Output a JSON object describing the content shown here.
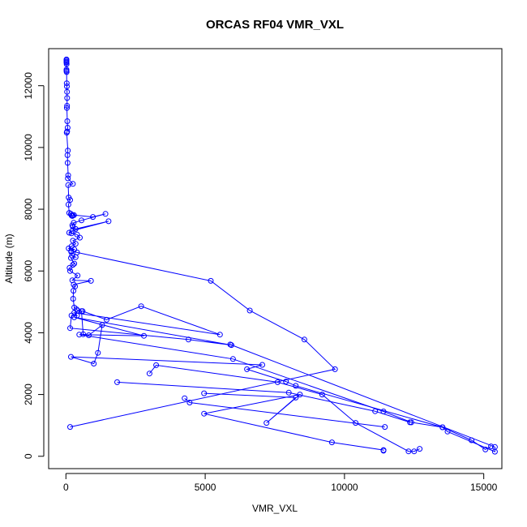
{
  "chart_data": {
    "type": "line",
    "title": "ORCAS RF04 VMR_VXL",
    "xlabel": "VMR_VXL",
    "ylabel": "Altitude (m)",
    "xlim": [
      -620,
      15650
    ],
    "ylim": [
      -400,
      13200
    ],
    "xticks": [
      0,
      5000,
      10000,
      15000
    ],
    "yticks": [
      0,
      2000,
      4000,
      6000,
      8000,
      10000,
      12000
    ],
    "grid": false,
    "legend": "none",
    "colors": {
      "series": "#0000ff",
      "axis": "#000000",
      "background": "#ffffff"
    },
    "series": [
      {
        "points": [
          [
            20,
            12850
          ],
          [
            20,
            12820
          ],
          [
            20,
            12780
          ],
          [
            20,
            12750
          ],
          [
            25,
            12700
          ],
          [
            20,
            12520
          ],
          [
            20,
            12480
          ],
          [
            25,
            12440
          ],
          [
            30,
            12080
          ],
          [
            35,
            11980
          ],
          [
            40,
            11800
          ],
          [
            45,
            11600
          ],
          [
            40,
            11350
          ],
          [
            35,
            11280
          ],
          [
            50,
            10850
          ],
          [
            60,
            10640
          ],
          [
            45,
            10520
          ],
          [
            30,
            10480
          ],
          [
            70,
            9900
          ],
          [
            55,
            9750
          ],
          [
            60,
            9500
          ],
          [
            80,
            9100
          ],
          [
            70,
            9000
          ],
          [
            250,
            8820
          ],
          [
            80,
            8780
          ],
          [
            100,
            8380
          ],
          [
            150,
            8300
          ],
          [
            90,
            8150
          ],
          [
            120,
            7880
          ],
          [
            180,
            7850
          ],
          [
            200,
            7800
          ],
          [
            230,
            7780
          ],
          [
            250,
            7800
          ],
          [
            290,
            7810
          ],
          [
            970,
            7750
          ],
          [
            1420,
            7850
          ],
          [
            560,
            7640
          ],
          [
            280,
            7560
          ],
          [
            230,
            7480
          ],
          [
            250,
            7430
          ],
          [
            350,
            7360
          ],
          [
            1530,
            7610
          ],
          [
            230,
            7300
          ],
          [
            120,
            7240
          ],
          [
            200,
            7220
          ],
          [
            400,
            7180
          ],
          [
            500,
            7080
          ],
          [
            250,
            6980
          ],
          [
            350,
            6880
          ],
          [
            200,
            6800
          ],
          [
            100,
            6730
          ],
          [
            300,
            6700
          ],
          [
            190,
            6650
          ],
          [
            400,
            6600
          ],
          [
            5200,
            5680
          ],
          [
            6600,
            4720
          ],
          [
            8560,
            3780
          ],
          [
            9660,
            2820
          ],
          [
            150,
            950
          ]
        ]
      },
      {
        "points": [
          [
            190,
            6620
          ],
          [
            220,
            6500
          ],
          [
            350,
            6450
          ],
          [
            180,
            6420
          ],
          [
            300,
            6240
          ],
          [
            250,
            6200
          ],
          [
            130,
            6100
          ],
          [
            150,
            6000
          ],
          [
            420,
            5850
          ],
          [
            230,
            5700
          ],
          [
            900,
            5680
          ],
          [
            280,
            5560
          ],
          [
            330,
            5500
          ],
          [
            270,
            5360
          ],
          [
            260,
            5100
          ],
          [
            300,
            4820
          ],
          [
            380,
            4760
          ],
          [
            420,
            4720
          ],
          [
            600,
            4700
          ],
          [
            1460,
            4420
          ],
          [
            2700,
            4860
          ],
          [
            5530,
            3940
          ],
          [
            300,
            4650
          ],
          [
            400,
            4560
          ],
          [
            200,
            4560
          ],
          [
            150,
            4150
          ],
          [
            4400,
            3780
          ],
          [
            5940,
            3600
          ],
          [
            300,
            4500
          ],
          [
            2800,
            3900
          ],
          [
            480,
            3940
          ],
          [
            6000,
            3150
          ],
          [
            11400,
            1450
          ],
          [
            12400,
            1100
          ],
          [
            13520,
            940
          ],
          [
            13700,
            800
          ],
          [
            15400,
            150
          ],
          [
            15400,
            300
          ],
          [
            5900,
            3620
          ]
        ]
      },
      {
        "points": [
          [
            560,
            4700
          ],
          [
            620,
            3950
          ],
          [
            820,
            3920
          ],
          [
            1300,
            4250
          ],
          [
            1150,
            3350
          ],
          [
            1000,
            3000
          ],
          [
            180,
            3220
          ],
          [
            7050,
            2960
          ],
          [
            6500,
            2820
          ],
          [
            7900,
            2420
          ],
          [
            8250,
            2280
          ],
          [
            13520,
            940
          ],
          [
            14560,
            520
          ],
          [
            15060,
            220
          ],
          [
            15260,
            320
          ]
        ]
      },
      {
        "points": [
          [
            3000,
            2680
          ],
          [
            3240,
            2950
          ],
          [
            7600,
            2400
          ],
          [
            9200,
            2000
          ],
          [
            10400,
            1080
          ],
          [
            12300,
            160
          ],
          [
            12500,
            160
          ],
          [
            12700,
            240
          ]
        ]
      },
      {
        "points": [
          [
            1840,
            2400
          ],
          [
            8000,
            2060
          ],
          [
            11100,
            1460
          ],
          [
            12350,
            1100
          ]
        ]
      },
      {
        "points": [
          [
            4260,
            1880
          ],
          [
            4440,
            1740
          ],
          [
            11450,
            950
          ]
        ]
      },
      {
        "points": [
          [
            4960,
            2040
          ],
          [
            8250,
            1900
          ],
          [
            7200,
            1080
          ],
          [
            8400,
            2000
          ],
          [
            4960,
            1380
          ],
          [
            9550,
            450
          ],
          [
            11400,
            200
          ],
          [
            11400,
            180
          ]
        ]
      }
    ]
  }
}
